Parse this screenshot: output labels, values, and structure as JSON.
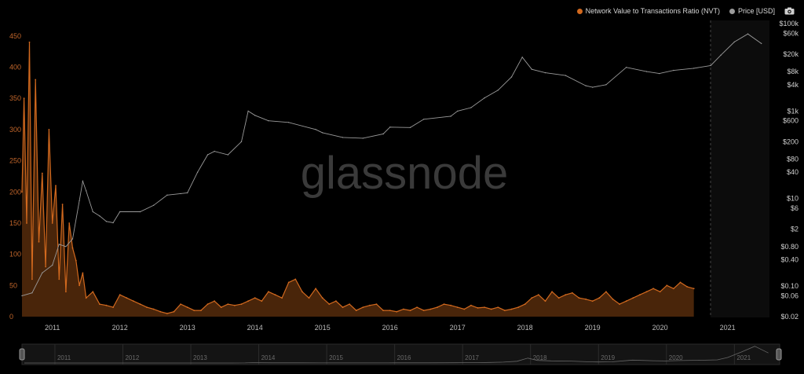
{
  "legend": {
    "nvt_label": "Network Value to Transactions Ratio (NVT)",
    "price_label": "Price [USD]"
  },
  "watermark": "glassnode",
  "colors": {
    "nvt": "#d2691e",
    "price": "#9a9a9a",
    "background": "#000000",
    "axis_text_left": "#c0652a",
    "axis_text_right": "#cfcfcf",
    "navigator_bg": "#141414"
  },
  "icons": {
    "camera": "camera-icon"
  },
  "chart_data": {
    "type": "line",
    "title": "",
    "x_ticks": [
      "2011",
      "2012",
      "2013",
      "2014",
      "2015",
      "2016",
      "2017",
      "2018",
      "2019",
      "2020",
      "2021"
    ],
    "y_left": {
      "label": "",
      "ticks": [
        0,
        50,
        100,
        150,
        200,
        250,
        300,
        350,
        400,
        450
      ],
      "range": [
        0,
        470
      ]
    },
    "y_right": {
      "label": "",
      "scale": "log",
      "ticks": [
        "$0.02",
        "$0.06",
        "$0.10",
        "$0.40",
        "$0.80",
        "$2",
        "$6",
        "$10",
        "$40",
        "$80",
        "$200",
        "$600",
        "$1k",
        "$4k",
        "$8k",
        "$20k",
        "$60k",
        "$100k"
      ],
      "range": [
        0.02,
        100000
      ]
    },
    "series": [
      {
        "name": "Network Value to Transactions Ratio (NVT)",
        "axis": "left",
        "x": [
          2010.55,
          2010.58,
          2010.62,
          2010.66,
          2010.7,
          2010.75,
          2010.8,
          2010.85,
          2010.9,
          2010.95,
          2011.0,
          2011.05,
          2011.1,
          2011.15,
          2011.2,
          2011.25,
          2011.3,
          2011.35,
          2011.4,
          2011.45,
          2011.5,
          2011.6,
          2011.7,
          2011.8,
          2011.9,
          2012.0,
          2012.1,
          2012.2,
          2012.3,
          2012.4,
          2012.5,
          2012.6,
          2012.7,
          2012.8,
          2012.9,
          2013.0,
          2013.1,
          2013.2,
          2013.3,
          2013.4,
          2013.5,
          2013.6,
          2013.7,
          2013.8,
          2013.9,
          2014.0,
          2014.1,
          2014.2,
          2014.3,
          2014.4,
          2014.5,
          2014.6,
          2014.7,
          2014.8,
          2014.9,
          2015.0,
          2015.1,
          2015.2,
          2015.3,
          2015.4,
          2015.5,
          2015.6,
          2015.7,
          2015.8,
          2015.9,
          2016.0,
          2016.1,
          2016.2,
          2016.3,
          2016.4,
          2016.5,
          2016.6,
          2016.7,
          2016.8,
          2016.9,
          2017.0,
          2017.1,
          2017.2,
          2017.3,
          2017.4,
          2017.5,
          2017.6,
          2017.7,
          2017.8,
          2017.9,
          2018.0,
          2018.1,
          2018.2,
          2018.3,
          2018.4,
          2018.5,
          2018.6,
          2018.7,
          2018.8,
          2018.9,
          2019.0,
          2019.1,
          2019.2,
          2019.3,
          2019.4,
          2019.5,
          2019.6,
          2019.7,
          2019.8,
          2019.9,
          2020.0,
          2020.1,
          2020.2,
          2020.3,
          2020.4,
          2020.5
        ],
        "values": [
          200,
          350,
          150,
          440,
          60,
          380,
          120,
          230,
          80,
          300,
          150,
          210,
          60,
          180,
          40,
          150,
          110,
          90,
          50,
          70,
          30,
          40,
          20,
          18,
          15,
          35,
          30,
          25,
          20,
          15,
          12,
          8,
          5,
          8,
          20,
          15,
          10,
          10,
          20,
          25,
          15,
          20,
          18,
          20,
          25,
          30,
          25,
          40,
          35,
          30,
          55,
          60,
          40,
          30,
          45,
          30,
          20,
          25,
          15,
          20,
          10,
          15,
          18,
          20,
          10,
          10,
          8,
          12,
          10,
          15,
          10,
          12,
          15,
          20,
          18,
          15,
          12,
          18,
          14,
          15,
          12,
          15,
          10,
          12,
          15,
          20,
          30,
          35,
          25,
          40,
          30,
          35,
          38,
          30,
          28,
          25,
          30,
          40,
          28,
          20,
          25,
          30,
          35,
          40,
          45,
          40,
          50,
          45,
          55,
          48,
          45
        ]
      },
      {
        "name": "Price [USD]",
        "axis": "right",
        "x": [
          2010.55,
          2010.7,
          2010.85,
          2011.0,
          2011.1,
          2011.2,
          2011.3,
          2011.4,
          2011.45,
          2011.5,
          2011.6,
          2011.7,
          2011.8,
          2011.9,
          2012.0,
          2012.3,
          2012.5,
          2012.7,
          2012.9,
          2013.0,
          2013.15,
          2013.3,
          2013.4,
          2013.6,
          2013.8,
          2013.9,
          2014.0,
          2014.2,
          2014.5,
          2014.9,
          2015.0,
          2015.3,
          2015.6,
          2015.9,
          2016.0,
          2016.3,
          2016.5,
          2016.9,
          2017.0,
          2017.2,
          2017.4,
          2017.6,
          2017.8,
          2017.96,
          2018.1,
          2018.3,
          2018.6,
          2018.9,
          2019.0,
          2019.2,
          2019.5,
          2019.8,
          2019.99,
          2020.2,
          2020.5,
          2020.75,
          2020.9,
          2021.1,
          2021.3,
          2021.5
        ],
        "values": [
          0.06,
          0.07,
          0.2,
          0.3,
          0.9,
          0.8,
          1.2,
          9,
          25,
          15,
          5,
          4,
          3,
          2.8,
          5,
          5,
          7,
          12,
          13,
          13.5,
          40,
          100,
          120,
          100,
          200,
          1000,
          800,
          600,
          550,
          380,
          320,
          250,
          240,
          300,
          430,
          420,
          650,
          760,
          1000,
          1200,
          2000,
          3000,
          6000,
          17000,
          9000,
          7500,
          6500,
          3800,
          3500,
          4000,
          10000,
          8000,
          7200,
          8500,
          9500,
          11000,
          19000,
          38000,
          58000,
          35000
        ]
      }
    ]
  },
  "navigator": {
    "x_ticks": [
      "2011",
      "2012",
      "2013",
      "2014",
      "2015",
      "2016",
      "2017",
      "2018",
      "2019",
      "2020",
      "2021"
    ]
  }
}
